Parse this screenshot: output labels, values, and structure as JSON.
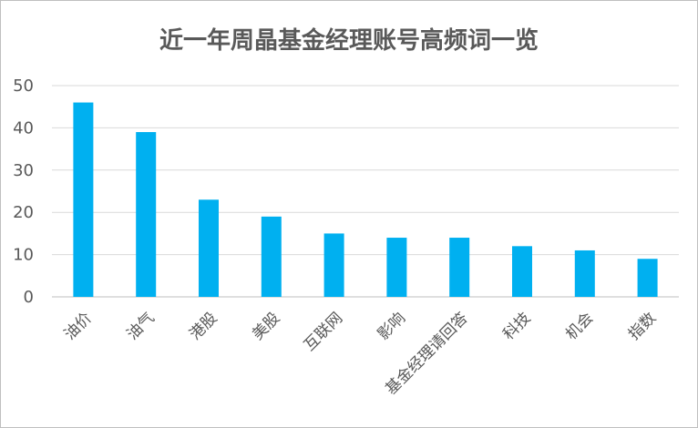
{
  "chart_data": {
    "type": "bar",
    "title": "近一年周晶基金经理账号高频词一览",
    "categories": [
      "油价",
      "油气",
      "港股",
      "美股",
      "互联网",
      "影响",
      "基金经理请回答",
      "科技",
      "机会",
      "指数"
    ],
    "values": [
      46,
      39,
      23,
      19,
      15,
      14,
      14,
      12,
      11,
      9
    ],
    "ylim": [
      0,
      50
    ],
    "yticks": [
      0,
      10,
      20,
      30,
      40,
      50
    ],
    "xlabel": "",
    "ylabel": "",
    "grid": true,
    "legend": "none",
    "bar_color": "#00b0f0",
    "grid_color": "#d9d9d9",
    "text_color": "#595959"
  }
}
